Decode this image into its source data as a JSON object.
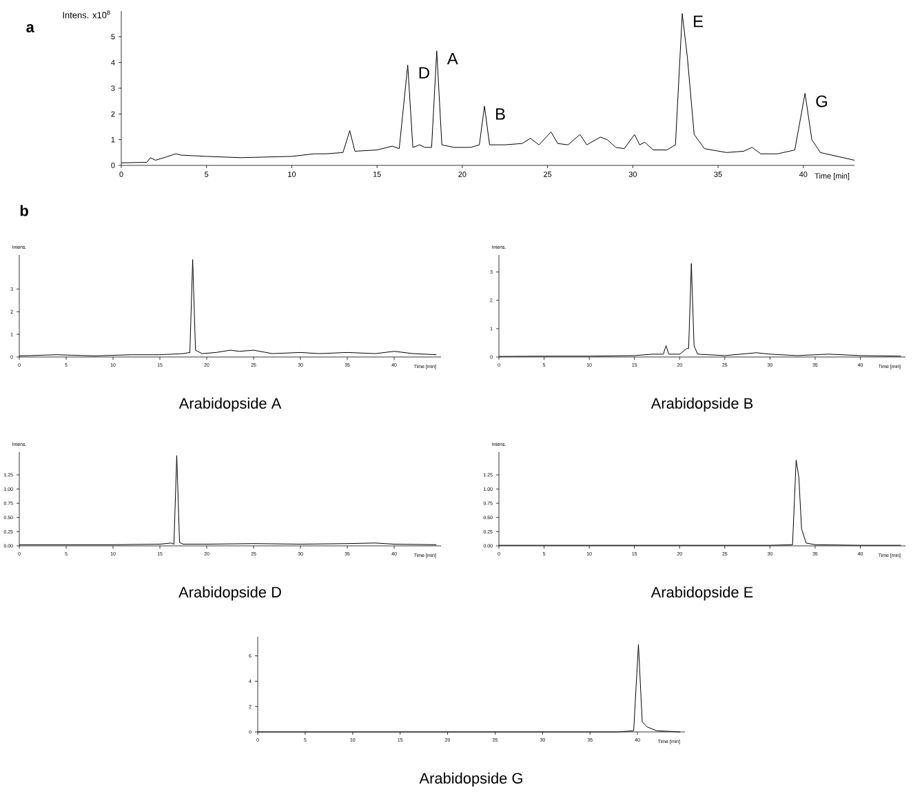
{
  "chart_data": [
    {
      "type": "line",
      "title": "a",
      "xlabel": "Time [min]",
      "ylabel": "Intens. x10$^{8}$",
      "color": "#000000",
      "x": [
        0,
        1.5,
        1.7,
        2.0,
        2.5,
        3.2,
        3.5,
        5,
        7,
        10,
        11.3,
        12,
        13.0,
        13.4,
        13.7,
        15,
        15.9,
        16.3,
        16.8,
        17.1,
        17.5,
        17.8,
        18.2,
        18.5,
        18.8,
        19.5,
        20.5,
        21.0,
        21.3,
        21.6,
        22.5,
        23.5,
        24.0,
        24.5,
        25.2,
        25.6,
        26.2,
        26.9,
        27.3,
        28.1,
        28.5,
        29,
        29.5,
        30.1,
        30.4,
        30.7,
        31.2,
        32,
        32.5,
        32.9,
        33.2,
        33.6,
        34.2,
        35.5,
        36.5,
        37.0,
        37.5,
        38.5,
        39.5,
        40.1,
        40.5,
        41,
        43
      ],
      "values": [
        0.1,
        0.12,
        0.3,
        0.2,
        0.3,
        0.45,
        0.4,
        0.35,
        0.3,
        0.35,
        0.45,
        0.45,
        0.5,
        1.35,
        0.55,
        0.6,
        0.75,
        0.65,
        3.9,
        0.7,
        0.8,
        0.7,
        0.7,
        4.45,
        0.8,
        0.7,
        0.7,
        0.8,
        2.3,
        0.8,
        0.8,
        0.85,
        1.05,
        0.8,
        1.3,
        0.85,
        0.8,
        1.2,
        0.8,
        1.1,
        1.0,
        0.7,
        0.65,
        1.2,
        0.8,
        0.9,
        0.6,
        0.6,
        0.8,
        5.9,
        4.2,
        1.2,
        0.65,
        0.5,
        0.55,
        0.7,
        0.45,
        0.45,
        0.6,
        2.8,
        1.0,
        0.5,
        0.2
      ],
      "xlim": [
        0,
        43
      ],
      "ylim": [
        0,
        6
      ],
      "xticks": [
        0,
        5,
        10,
        15,
        20,
        25,
        30,
        35,
        40
      ],
      "yticks": [
        0,
        1,
        2,
        3,
        4,
        5
      ],
      "annotations": [
        {
          "text": "D",
          "x": 16.8,
          "y": 3.9
        },
        {
          "text": "A",
          "x": 18.5,
          "y": 4.45
        },
        {
          "text": "B",
          "x": 21.3,
          "y": 2.3
        },
        {
          "text": "E",
          "x": 32.9,
          "y": 5.9
        },
        {
          "text": "G",
          "x": 40.1,
          "y": 2.8
        }
      ]
    },
    {
      "type": "line",
      "title": "Arabidopside A",
      "xlabel": "Time [min]",
      "ylabel": "Intens.",
      "color": "#000000",
      "x": [
        0,
        4,
        8,
        12,
        15,
        17.5,
        18.2,
        18.5,
        18.8,
        19.5,
        21,
        22.5,
        23.5,
        25,
        27,
        30,
        32,
        35,
        38,
        40,
        42,
        44.5
      ],
      "values": [
        0.05,
        0.1,
        0.05,
        0.1,
        0.1,
        0.15,
        0.2,
        4.3,
        0.3,
        0.15,
        0.2,
        0.3,
        0.25,
        0.3,
        0.15,
        0.2,
        0.15,
        0.2,
        0.15,
        0.25,
        0.15,
        0.1
      ],
      "xlim": [
        0,
        45
      ],
      "ylim": [
        0,
        4.5
      ],
      "xticks": [
        0,
        5,
        10,
        15,
        20,
        25,
        30,
        35,
        40
      ],
      "yticks": [
        0,
        1,
        2,
        3
      ]
    },
    {
      "type": "line",
      "title": "Arabidopside B",
      "xlabel": "Time [min]",
      "ylabel": "Intens.",
      "color": "#000000",
      "x": [
        0,
        5,
        10,
        15,
        17,
        18.2,
        18.5,
        18.8,
        20,
        20.8,
        21.0,
        21.3,
        21.6,
        22,
        25,
        28.5,
        30,
        33,
        36.5,
        40,
        44.5
      ],
      "values": [
        0.02,
        0.03,
        0.03,
        0.05,
        0.1,
        0.1,
        0.4,
        0.1,
        0.1,
        0.3,
        0.3,
        3.3,
        0.4,
        0.1,
        0.05,
        0.15,
        0.1,
        0.05,
        0.1,
        0.05,
        0.03
      ],
      "xlim": [
        0,
        45
      ],
      "ylim": [
        0,
        3.6
      ],
      "xticks": [
        0,
        5,
        10,
        15,
        20,
        25,
        30,
        35,
        40
      ],
      "yticks": [
        0,
        1,
        2,
        3
      ]
    },
    {
      "type": "line",
      "title": "Arabidopside D",
      "xlabel": "Time [min]",
      "ylabel": "Intens.",
      "color": "#000000",
      "x": [
        0,
        5,
        10,
        15,
        16.2,
        16.5,
        16.8,
        17.1,
        17.5,
        20,
        25,
        30,
        35,
        38,
        40,
        44.5
      ],
      "values": [
        0.02,
        0.02,
        0.02,
        0.03,
        0.05,
        0.03,
        1.59,
        0.06,
        0.03,
        0.03,
        0.04,
        0.03,
        0.04,
        0.05,
        0.03,
        0.02
      ],
      "xlim": [
        0,
        45
      ],
      "ylim": [
        0,
        1.65
      ],
      "xticks": [
        0,
        5,
        10,
        15,
        20,
        25,
        30,
        35,
        40
      ],
      "yticks": [
        {
          "value": 0,
          "label": "0.00"
        },
        {
          "value": 0.25,
          "label": "0.25"
        },
        {
          "value": 0.5,
          "label": "0.50"
        },
        {
          "value": 0.75,
          "label": "0.75"
        },
        {
          "value": 1.0,
          "label": "1.00"
        },
        {
          "value": 1.25,
          "label": "1.25"
        }
      ]
    },
    {
      "type": "line",
      "title": "Arabidopside E",
      "xlabel": "Time [min]",
      "ylabel": "Intens.",
      "color": "#000000",
      "x": [
        0,
        10,
        20,
        30,
        32.5,
        32.9,
        33.2,
        33.5,
        34,
        35,
        40,
        44.5
      ],
      "values": [
        0.01,
        0.01,
        0.01,
        0.01,
        0.02,
        1.51,
        1.2,
        0.3,
        0.05,
        0.02,
        0.01,
        0.01
      ],
      "xlim": [
        0,
        45
      ],
      "ylim": [
        0,
        1.65
      ],
      "xticks": [
        0,
        5,
        10,
        15,
        20,
        25,
        30,
        35,
        40
      ],
      "yticks": [
        {
          "value": 0,
          "label": "0.00"
        },
        {
          "value": 0.25,
          "label": "0.25"
        },
        {
          "value": 0.5,
          "label": "0.50"
        },
        {
          "value": 0.75,
          "label": "0.75"
        },
        {
          "value": 1.0,
          "label": "1.00"
        },
        {
          "value": 1.25,
          "label": "1.25"
        }
      ]
    },
    {
      "type": "line",
      "title": "Arabidopside G",
      "xlabel": "Time [min]",
      "color": "#000000",
      "x": [
        0,
        10,
        20,
        30,
        38,
        39.6,
        40.1,
        40.5,
        41,
        42,
        44.5
      ],
      "values": [
        0,
        0,
        0,
        0,
        0,
        0.1,
        6.9,
        0.8,
        0.4,
        0.1,
        0
      ],
      "xlim": [
        0,
        45
      ],
      "ylim": [
        0,
        7.5
      ],
      "xticks": [
        0,
        5,
        10,
        15,
        20,
        25,
        30,
        35,
        40
      ],
      "yticks": [
        0,
        2,
        4,
        6
      ],
      "annotations": [
        "b"
      ]
    }
  ]
}
